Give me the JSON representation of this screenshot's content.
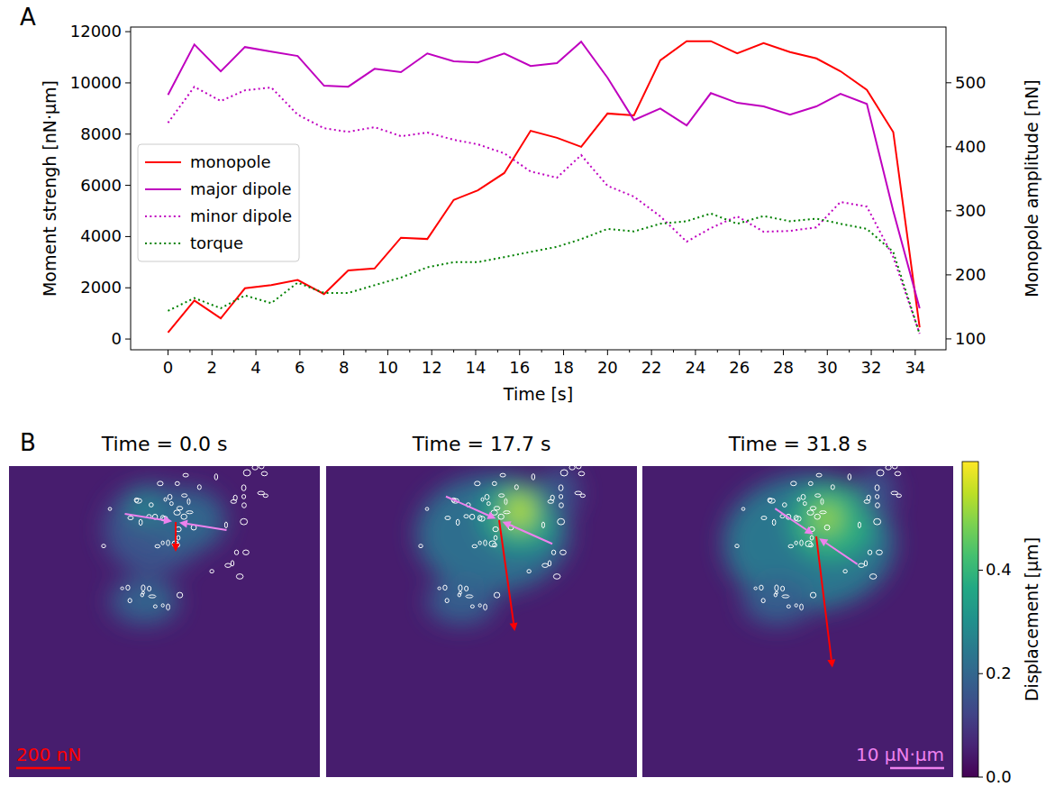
{
  "chart_data": [
    {
      "type": "line",
      "panel_label": "A",
      "x_label": "Time [s]",
      "y_label": "Moment strengh [nN·µm]",
      "y2_label": "Monopole amplitude [nN]",
      "x": [
        0,
        1.2,
        2.4,
        3.5,
        4.7,
        5.9,
        7.1,
        8.2,
        9.4,
        10.6,
        11.8,
        13.0,
        14.1,
        15.3,
        16.5,
        17.7,
        18.8,
        20.0,
        21.2,
        22.4,
        23.6,
        24.7,
        25.9,
        27.1,
        28.3,
        29.5,
        30.6,
        31.8,
        33.0,
        34.2
      ],
      "xlim": [
        -1.7,
        35.4
      ],
      "xticks": [
        0,
        2,
        4,
        6,
        8,
        10,
        12,
        14,
        16,
        18,
        20,
        22,
        24,
        26,
        28,
        30,
        32,
        34
      ],
      "ylim": [
        -420,
        12180
      ],
      "yticks": [
        0,
        2000,
        4000,
        6000,
        8000,
        10000,
        12000
      ],
      "y2lim": [
        83,
        587
      ],
      "y2ticks": [
        100,
        200,
        300,
        400,
        500
      ],
      "legend": "center left",
      "series": [
        {
          "name": "monopole",
          "color": "#ff0000",
          "line_style": "solid",
          "axis": "y2",
          "values": [
            110,
            160,
            132,
            179,
            184,
            192,
            170,
            207,
            210,
            258,
            256,
            317,
            332,
            359,
            425,
            414,
            400,
            452,
            449,
            535,
            565,
            565,
            546,
            562,
            548,
            538,
            518,
            489,
            423,
            118
          ]
        },
        {
          "name": "major dipole",
          "color": "#bf00bf",
          "line_style": "solid",
          "values": [
            9530,
            11500,
            10450,
            11400,
            11220,
            11050,
            9890,
            9850,
            10550,
            10420,
            11150,
            10840,
            10800,
            11150,
            10660,
            10770,
            11610,
            10200,
            8550,
            9000,
            8340,
            9600,
            9220,
            9080,
            8760,
            9080,
            9570,
            9180,
            5000,
            1200
          ]
        },
        {
          "name": "minor dipole",
          "color": "#bf00bf",
          "line_style": "dotted",
          "values": [
            8440,
            9850,
            9290,
            9710,
            9820,
            8760,
            8230,
            8090,
            8270,
            7920,
            8060,
            7780,
            7600,
            7250,
            6540,
            6300,
            7180,
            5980,
            5560,
            4790,
            3800,
            4330,
            4790,
            4190,
            4220,
            4360,
            5350,
            5170,
            3200,
            210
          ]
        },
        {
          "name": "torque",
          "color": "#008000",
          "line_style": "dotted",
          "values": [
            1100,
            1600,
            1200,
            1700,
            1400,
            2200,
            1800,
            1800,
            2100,
            2400,
            2800,
            3000,
            3000,
            3200,
            3400,
            3600,
            3900,
            4300,
            4200,
            4500,
            4600,
            4900,
            4500,
            4800,
            4600,
            4700,
            4500,
            4300,
            3400,
            200
          ]
        }
      ]
    },
    {
      "type": "image",
      "panel_label": "B",
      "panels": [
        {
          "title": "Time = 0.0 s",
          "time": 0,
          "dipole_angle": 9,
          "monopole_angle": 90
        },
        {
          "title": "Time = 17.7 s",
          "time": 17.7,
          "dipole_angle": 24,
          "monopole_angle": 82
        },
        {
          "title": "Time = 31.8 s",
          "time": 31.8,
          "dipole_angle": 34,
          "monopole_angle": 83
        }
      ],
      "colorbar": {
        "label": "Displacement [µm]",
        "range": [
          0,
          0.61
        ],
        "ticks": [
          {
            "value": 0,
            "label": "0.0"
          },
          {
            "value": 0.2,
            "label": "0.2"
          },
          {
            "value": 0.4,
            "label": "0.4"
          }
        ]
      },
      "scale_bars": [
        {
          "label": "200 nN",
          "value": 200,
          "color": "#ff0000"
        },
        {
          "label": "10 µN·µm",
          "value": 10000,
          "color": "#ee82ee"
        }
      ]
    }
  ]
}
